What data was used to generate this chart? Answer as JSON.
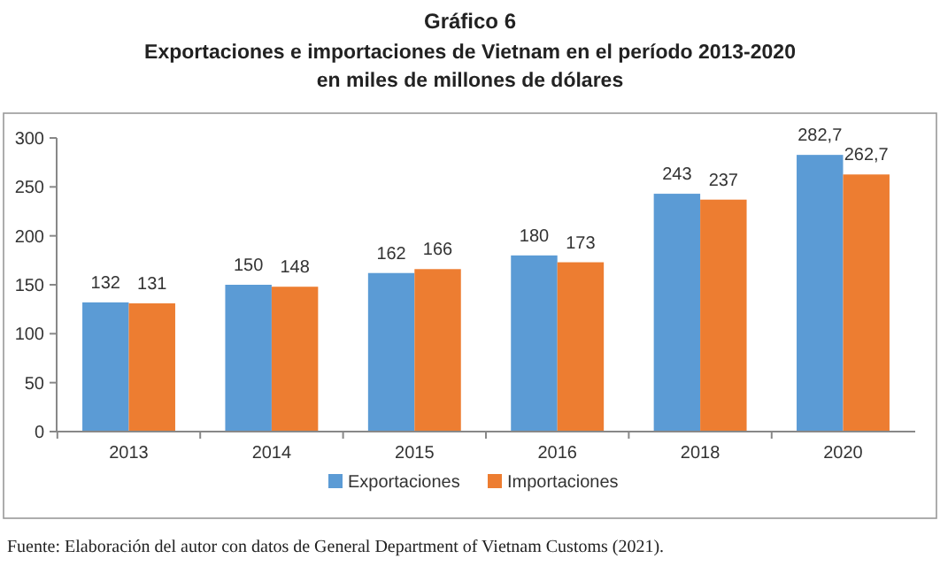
{
  "chart_data": {
    "type": "bar",
    "title": "Gráfico 6",
    "subtitle": "Exportaciones e importaciones de Vietnam en el período 2013-2020\nen miles de millones de dólares",
    "categories": [
      "2013",
      "2014",
      "2015",
      "2016",
      "2018",
      "2020"
    ],
    "series": [
      {
        "name": "Exportaciones",
        "color": "#5b9bd5",
        "values": [
          132,
          150,
          162,
          180,
          243,
          282.7
        ],
        "value_labels": [
          "132",
          "150",
          "162",
          "180",
          "243",
          "282,7"
        ]
      },
      {
        "name": "Importaciones",
        "color": "#ed7d31",
        "values": [
          131,
          148,
          166,
          173,
          237,
          262.7
        ],
        "value_labels": [
          "131",
          "148",
          "166",
          "173",
          "237",
          "262,7"
        ]
      }
    ],
    "ylim": [
      0,
      300
    ],
    "yticks": [
      0,
      50,
      100,
      150,
      200,
      250,
      300
    ],
    "grid": false,
    "legend": "bottom",
    "annotations": [
      "Fuente: Elaboración del autor con datos de General Department of Vietnam Customs (2021)."
    ]
  }
}
